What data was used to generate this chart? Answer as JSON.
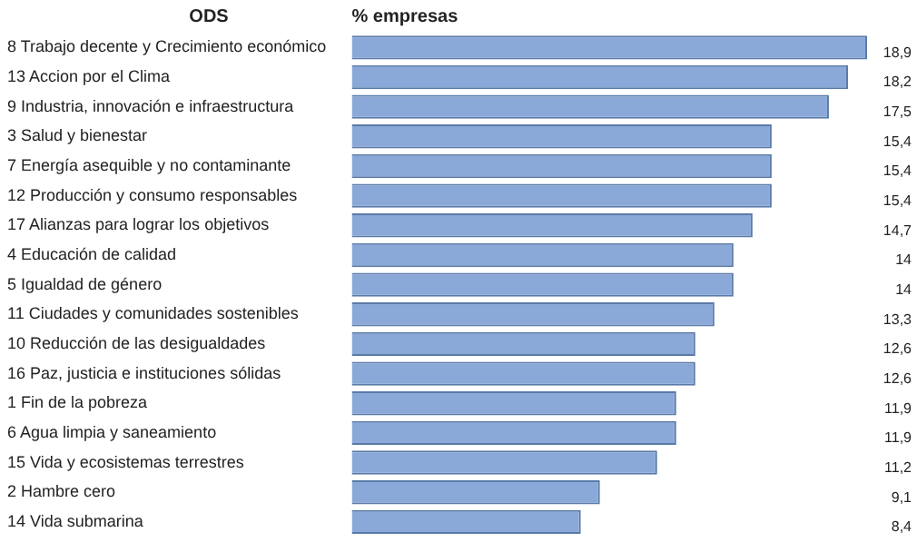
{
  "chart_data": {
    "type": "bar",
    "orientation": "horizontal",
    "ylabel": "ODS",
    "xlabel": "% empresas",
    "categories": [
      "8 Trabajo decente y Crecimiento económico",
      "13 Accion por el Clima",
      "9 Industria, innovación e infraestructura",
      "3 Salud y bienestar",
      "7 Energía asequible y no contaminante",
      "12 Producción y consumo responsables",
      "17 Alianzas para lograr los objetivos",
      "4 Educación de calidad",
      "5 Igualdad de género",
      "11 Ciudades y comunidades sostenibles",
      "10 Reducción de las desigualdades",
      "16 Paz, justicia e instituciones sólidas",
      "1 Fin de la pobreza",
      "6 Agua limpia y saneamiento",
      "15 Vida y ecosistemas terrestres",
      "2 Hambre cero",
      "14 Vida submarina"
    ],
    "values": [
      18.9,
      18.2,
      17.5,
      15.4,
      15.4,
      15.4,
      14.7,
      14,
      14,
      13.3,
      12.6,
      12.6,
      11.9,
      11.9,
      11.2,
      9.1,
      8.4
    ],
    "value_labels": [
      "18,9",
      "18,2",
      "17,5",
      "15,4",
      "15,4",
      "15,4",
      "14,7",
      "14",
      "14",
      "13,3",
      "12,6",
      "12,6",
      "11,9",
      "11,9",
      "11,2",
      "9,1",
      "8,4"
    ],
    "color": "#8aa8d8",
    "xlim": [
      0,
      19
    ],
    "legend": false,
    "tick_labels": "y"
  }
}
